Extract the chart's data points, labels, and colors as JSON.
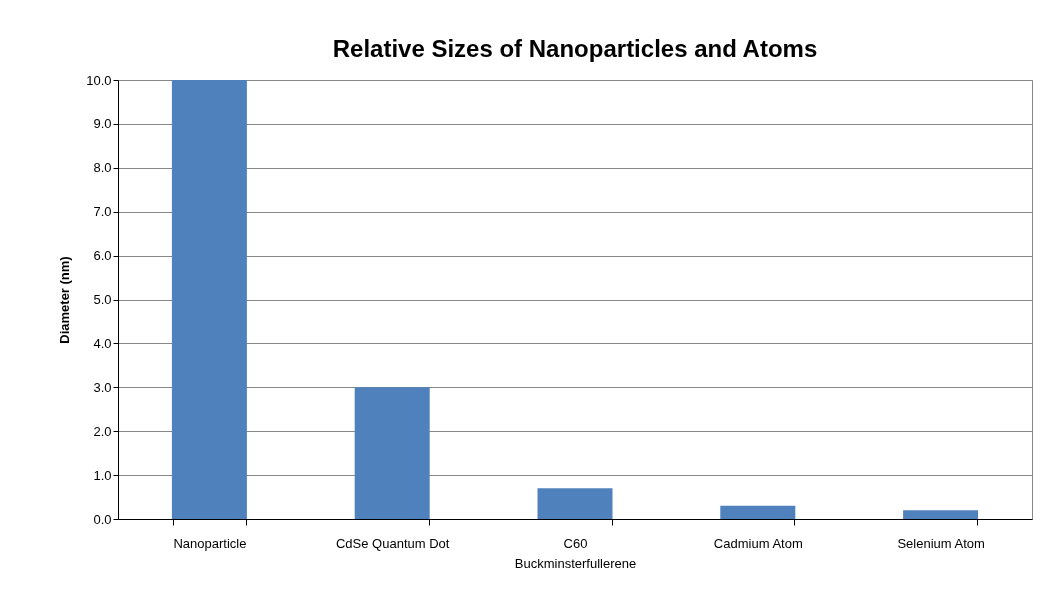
{
  "chart_data": {
    "type": "bar",
    "title": "Relative Sizes of Nanoparticles and Atoms",
    "ylabel": "Diameter (nm)",
    "categories": [
      "Nanoparticle",
      "CdSe Quantum Dot",
      "C60 Buckminsterfullerene",
      "Cadmium Atom",
      "Selenium Atom"
    ],
    "values": [
      10,
      3.0,
      0.7,
      0.3,
      0.2
    ],
    "color": "#4f81bd",
    "ylim": [
      0,
      10
    ],
    "yticks": [
      {
        "value": 0,
        "label": "0.0"
      },
      {
        "value": 1,
        "label": "1.0"
      },
      {
        "value": 2,
        "label": "2.0"
      },
      {
        "value": 3,
        "label": "3.0"
      },
      {
        "value": 4,
        "label": "4.0"
      },
      {
        "value": 5,
        "label": "5.0"
      },
      {
        "value": 6,
        "label": "6.0"
      },
      {
        "value": 7,
        "label": "7.0"
      },
      {
        "value": 8,
        "label": "8.0"
      },
      {
        "value": 9,
        "label": "9.0"
      },
      {
        "value": 10,
        "label": "10.0"
      }
    ],
    "grid": "y"
  }
}
